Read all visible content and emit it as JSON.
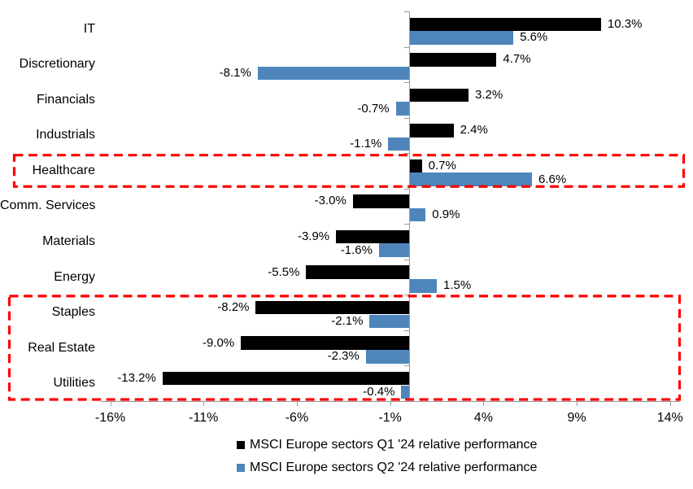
{
  "chart_data": {
    "type": "bar",
    "orientation": "horizontal",
    "title": "",
    "xlabel": "",
    "ylabel": "",
    "grid": false,
    "legend_position": "bottom",
    "categories": [
      "IT",
      "Discretionary",
      "Financials",
      "Industrials",
      "Healthcare",
      "Comm. Services",
      "Materials",
      "Energy",
      "Staples",
      "Real Estate",
      "Utilities"
    ],
    "series": [
      {
        "name": "MSCI Europe sectors Q1 '24 relative performance",
        "color": "#000000",
        "values": [
          10.3,
          4.7,
          3.2,
          2.4,
          0.7,
          -3.0,
          -3.9,
          -5.5,
          -8.2,
          -9.0,
          -13.2
        ],
        "labels": [
          "10.3%",
          "4.7%",
          "3.2%",
          "2.4%",
          "0.7%",
          "-3.0%",
          "-3.9%",
          "-5.5%",
          "-8.2%",
          "-9.0%",
          "-13.2%"
        ]
      },
      {
        "name": "MSCI Europe sectors Q2 '24 relative performance",
        "color": "#4E86BC",
        "values": [
          5.6,
          -8.1,
          -0.7,
          -1.1,
          6.6,
          0.9,
          -1.6,
          1.5,
          -2.1,
          -2.3,
          -0.4
        ],
        "labels": [
          "5.6%",
          "-8.1%",
          "-0.7%",
          "-1.1%",
          "6.6%",
          "0.9%",
          "-1.6%",
          "1.5%",
          "-2.1%",
          "-2.3%",
          "-0.4%"
        ]
      }
    ],
    "x_axis": {
      "min": -16,
      "max": 14,
      "tick_step": 5,
      "ticks": [
        {
          "label": "-16%",
          "value": -16
        },
        {
          "label": "-11%",
          "value": -11
        },
        {
          "label": "-6%",
          "value": -6
        },
        {
          "label": "-1%",
          "value": -1
        },
        {
          "label": "4%",
          "value": 4
        },
        {
          "label": "9%",
          "value": 9
        },
        {
          "label": "14%",
          "value": 14
        }
      ]
    },
    "highlights": [
      {
        "sectors": [
          "Healthcare"
        ],
        "style": "red-dashed-box",
        "color": "#FE0000"
      },
      {
        "sectors": [
          "Staples",
          "Real Estate",
          "Utilities"
        ],
        "style": "red-dashed-box",
        "color": "#FE0000"
      }
    ],
    "axis_color": "#9a9a9a"
  }
}
